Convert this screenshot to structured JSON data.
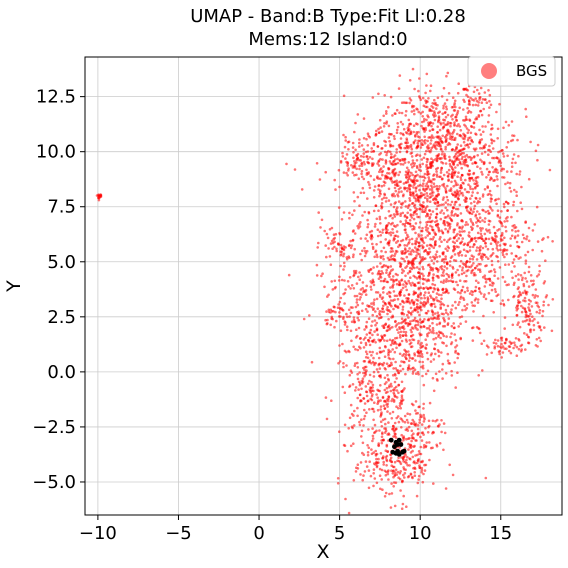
{
  "chart_data": {
    "type": "scatter",
    "title_line1": "UMAP  -  Band:B Type:Fit Ll:0.28",
    "title_line2": "Mems:12 Island:0",
    "xlabel": "X",
    "ylabel": "Y",
    "xlim": [
      -10.8,
      18.8
    ],
    "ylim": [
      -6.5,
      14.3
    ],
    "grid": true,
    "legend_position": "top-right",
    "x_ticks": [
      -10,
      -5,
      0,
      5,
      10,
      15
    ],
    "y_ticks": [
      -5.0,
      -2.5,
      0.0,
      2.5,
      5.0,
      7.5,
      10.0,
      12.5
    ],
    "x_tick_labels": [
      "−10",
      "−5",
      "0",
      "5",
      "10",
      "15"
    ],
    "y_tick_labels": [
      "−5.0",
      "−2.5",
      "0.0",
      "2.5",
      "5.0",
      "7.5",
      "10.0",
      "12.5"
    ],
    "series": [
      {
        "name": "BGS",
        "color": "#ff0000",
        "marker": "circle",
        "clusters": [
          {
            "cx": 10.5,
            "cy": 11.5,
            "sx": 1.5,
            "sy": 0.9,
            "n": 220
          },
          {
            "cx": 12.5,
            "cy": 9.5,
            "sx": 2.0,
            "sy": 1.2,
            "n": 520
          },
          {
            "cx": 9.0,
            "cy": 9.0,
            "sx": 1.8,
            "sy": 1.2,
            "n": 420
          },
          {
            "cx": 10.5,
            "cy": 6.5,
            "sx": 2.6,
            "sy": 1.4,
            "n": 650
          },
          {
            "cx": 9.5,
            "cy": 4.0,
            "sx": 2.4,
            "sy": 1.2,
            "n": 600
          },
          {
            "cx": 9.0,
            "cy": 1.5,
            "sx": 2.0,
            "sy": 1.2,
            "n": 480
          },
          {
            "cx": 7.5,
            "cy": -1.0,
            "sx": 1.2,
            "sy": 1.0,
            "n": 230
          },
          {
            "cx": 8.5,
            "cy": -4.0,
            "sx": 1.3,
            "sy": 0.9,
            "n": 300
          },
          {
            "cx": 14.5,
            "cy": 5.5,
            "sx": 1.2,
            "sy": 1.0,
            "n": 200
          },
          {
            "cx": 16.8,
            "cy": 3.0,
            "sx": 0.6,
            "sy": 0.8,
            "n": 120
          },
          {
            "cx": 15.5,
            "cy": 1.2,
            "sx": 0.7,
            "sy": 0.2,
            "n": 50
          },
          {
            "cx": 5.0,
            "cy": 5.7,
            "sx": 0.4,
            "sy": 0.3,
            "n": 35
          },
          {
            "cx": 5.0,
            "cy": 2.8,
            "sx": 0.5,
            "sy": 0.4,
            "n": 40
          },
          {
            "cx": 6.2,
            "cy": 9.6,
            "sx": 0.6,
            "sy": 0.5,
            "n": 60
          },
          {
            "cx": 13.5,
            "cy": 12.3,
            "sx": 0.6,
            "sy": 0.5,
            "n": 50
          },
          {
            "cx": 9.5,
            "cy": -2.5,
            "sx": 0.9,
            "sy": 0.4,
            "n": 60
          },
          {
            "cx": -9.9,
            "cy": 7.97,
            "sx": 0.08,
            "sy": 0.08,
            "n": 15
          }
        ]
      },
      {
        "name": "",
        "color": "#000000",
        "marker": "circle",
        "points": [
          [
            8.2,
            -3.1
          ],
          [
            8.5,
            -3.2
          ],
          [
            8.7,
            -3.1
          ],
          [
            8.4,
            -3.4
          ],
          [
            8.8,
            -3.3
          ],
          [
            8.6,
            -3.6
          ],
          [
            8.9,
            -3.65
          ],
          [
            8.5,
            -3.7
          ],
          [
            8.3,
            -3.65
          ],
          [
            9.0,
            -3.6
          ],
          [
            8.7,
            -3.75
          ],
          [
            8.6,
            -3.3
          ]
        ]
      }
    ]
  }
}
